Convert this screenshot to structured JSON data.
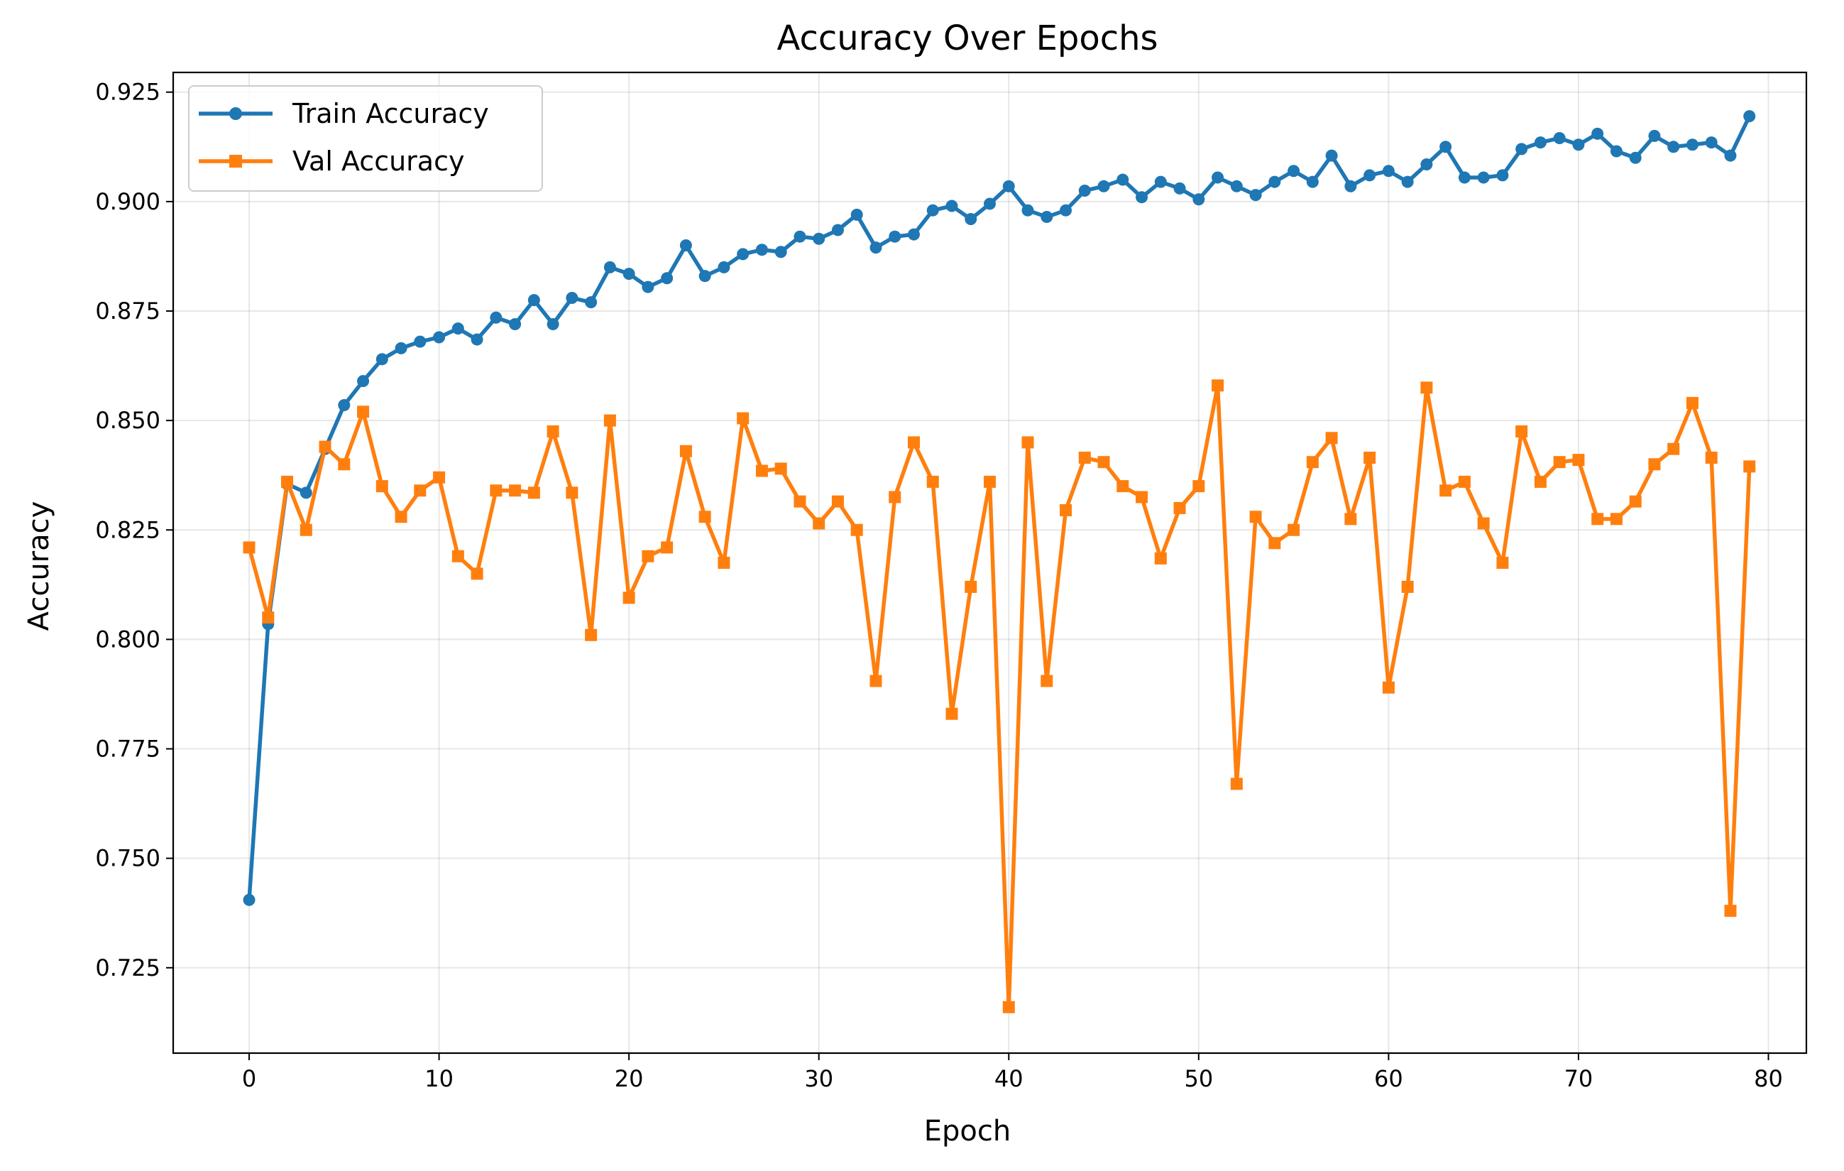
{
  "chart_data": {
    "type": "line",
    "title": "Accuracy Over Epochs",
    "xlabel": "Epoch",
    "ylabel": "Accuracy",
    "xlim": [
      -4,
      82
    ],
    "ylim": [
      0.7055,
      0.9295
    ],
    "xticks": [
      0,
      10,
      20,
      30,
      40,
      50,
      60,
      70,
      80
    ],
    "yticks": [
      0.725,
      0.75,
      0.775,
      0.8,
      0.825,
      0.85,
      0.875,
      0.9,
      0.925
    ],
    "ytick_labels": [
      "0.725",
      "0.750",
      "0.775",
      "0.800",
      "0.825",
      "0.850",
      "0.875",
      "0.900",
      "0.925"
    ],
    "grid": true,
    "legend_position": "top-left",
    "series": [
      {
        "name": "Train Accuracy",
        "color": "#1f77b4",
        "marker": "circle",
        "values": [
          0.7405,
          0.8035,
          0.8355,
          0.8335,
          0.8435,
          0.8535,
          0.859,
          0.864,
          0.8665,
          0.868,
          0.869,
          0.871,
          0.8685,
          0.8735,
          0.872,
          0.8775,
          0.872,
          0.878,
          0.877,
          0.885,
          0.8835,
          0.8805,
          0.8825,
          0.89,
          0.883,
          0.885,
          0.888,
          0.889,
          0.8885,
          0.892,
          0.8915,
          0.8935,
          0.897,
          0.8895,
          0.892,
          0.8925,
          0.898,
          0.899,
          0.896,
          0.8995,
          0.9035,
          0.898,
          0.8965,
          0.898,
          0.9025,
          0.9035,
          0.905,
          0.901,
          0.9045,
          0.903,
          0.9005,
          0.9055,
          0.9035,
          0.9015,
          0.9045,
          0.907,
          0.9045,
          0.9105,
          0.9035,
          0.906,
          0.907,
          0.9045,
          0.9085,
          0.9125,
          0.9055,
          0.9055,
          0.906,
          0.912,
          0.9135,
          0.9145,
          0.913,
          0.9155,
          0.9115,
          0.91,
          0.915,
          0.9125,
          0.913,
          0.9135,
          0.9105,
          0.9195
        ]
      },
      {
        "name": "Val Accuracy",
        "color": "#ff7f0e",
        "marker": "square",
        "values": [
          0.821,
          0.805,
          0.836,
          0.825,
          0.844,
          0.84,
          0.852,
          0.835,
          0.828,
          0.834,
          0.837,
          0.819,
          0.815,
          0.834,
          0.834,
          0.8335,
          0.8475,
          0.8335,
          0.801,
          0.85,
          0.8095,
          0.819,
          0.821,
          0.843,
          0.828,
          0.8175,
          0.8505,
          0.8385,
          0.839,
          0.8315,
          0.8265,
          0.8315,
          0.825,
          0.7905,
          0.8325,
          0.845,
          0.836,
          0.783,
          0.812,
          0.836,
          0.716,
          0.845,
          0.7905,
          0.8295,
          0.8415,
          0.8405,
          0.835,
          0.8325,
          0.8185,
          0.83,
          0.835,
          0.858,
          0.767,
          0.828,
          0.822,
          0.825,
          0.8405,
          0.846,
          0.8275,
          0.8415,
          0.789,
          0.812,
          0.8575,
          0.834,
          0.836,
          0.8265,
          0.8175,
          0.8475,
          0.836,
          0.8405,
          0.841,
          0.8275,
          0.8275,
          0.8315,
          0.84,
          0.8435,
          0.854,
          0.8415,
          0.738,
          0.8395
        ]
      }
    ]
  }
}
